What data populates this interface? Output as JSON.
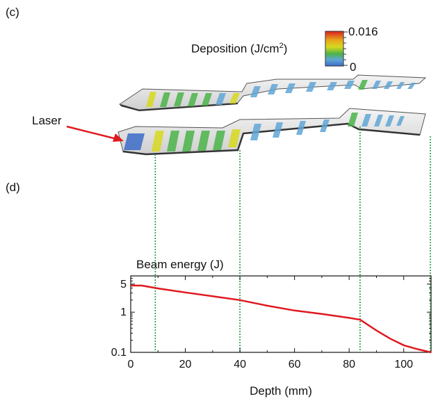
{
  "panel_c_label": "(c)",
  "panel_d_label": "(d)",
  "colorbar": {
    "title_main": "Deposition (J/cm",
    "title_sup": "2",
    "title_end": ")",
    "max_label": "0.016",
    "min_label": "0",
    "colors": [
      "#d9201e",
      "#e8a41c",
      "#d7d81e",
      "#4bb34a",
      "#5fa6d6",
      "#3b6bc7"
    ]
  },
  "laser_label": "Laser",
  "colors": {
    "line": "#e0191f",
    "guide": "#1f9a3c",
    "arrow": "#e0191f",
    "axis": "#111111"
  },
  "chart_data": {
    "type": "line",
    "title": "Beam energy (J)",
    "xlabel": "Depth (mm)",
    "ylabel": "",
    "y_scale": "log",
    "xlim": [
      0,
      110
    ],
    "ylim": [
      0.1,
      8
    ],
    "xticks": [
      0,
      20,
      40,
      60,
      80,
      100
    ],
    "xtick_labels": [
      "0",
      "20",
      "40",
      "60",
      "80",
      "100"
    ],
    "yticks": [
      0.1,
      1,
      5
    ],
    "ytick_labels": [
      "0.1",
      "1",
      "5"
    ],
    "series": [
      {
        "x": [
          0,
          4,
          10,
          20,
          30,
          40,
          50,
          60,
          70,
          80,
          84,
          90,
          95,
          100,
          105,
          110
        ],
        "y": [
          4.6,
          4.6,
          3.9,
          3.1,
          2.5,
          2.0,
          1.45,
          1.1,
          0.9,
          0.72,
          0.65,
          0.35,
          0.22,
          0.15,
          0.12,
          0.1
        ]
      }
    ],
    "guide_x": [
      9,
      40,
      84,
      110
    ]
  }
}
